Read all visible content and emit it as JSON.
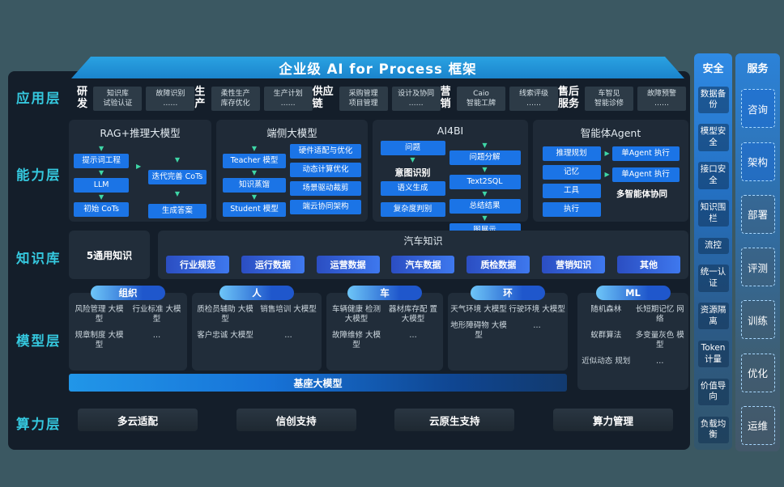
{
  "title": "企业级 AI for Process 框架",
  "layers": {
    "app": {
      "label": "应用层",
      "groups": [
        {
          "label": "研发",
          "items": [
            {
              "l1": "知识库",
              "l2": "试验认证"
            },
            {
              "l1": "故障识别",
              "l2": "……"
            }
          ]
        },
        {
          "label": "生产",
          "items": [
            {
              "l1": "柔性生产",
              "l2": "库存优化"
            },
            {
              "l1": "生产计划",
              "l2": "……"
            }
          ]
        },
        {
          "label": "供应链",
          "items": [
            {
              "l1": "采购管理",
              "l2": "项目管理"
            },
            {
              "l1": "设计及协同",
              "l2": "……"
            }
          ]
        },
        {
          "label": "营销",
          "items": [
            {
              "l1": "Caio",
              "l2": "智能工牌"
            },
            {
              "l1": "线索评级",
              "l2": "……"
            }
          ]
        },
        {
          "label": "售后服务",
          "items": [
            {
              "l1": "车智见",
              "l2": "智能诊修"
            },
            {
              "l1": "故障预警",
              "l2": "……"
            }
          ]
        }
      ]
    },
    "capability": {
      "label": "能力层",
      "rag": {
        "title": "RAG+推理大模型",
        "left": [
          "提示词工程",
          "LLM",
          "初始 CoTs"
        ],
        "right": [
          "迭代完善 CoTs",
          "生成答案"
        ]
      },
      "edge": {
        "title": "端侧大模型",
        "left": [
          "Teacher 模型",
          "知识蒸馏",
          "Student 模型"
        ],
        "right": [
          "硬件适配与优化",
          "动态计算优化",
          "场景驱动裁剪",
          "端云协同架构"
        ]
      },
      "ai4bi": {
        "title": "AI4BI",
        "q": "问题",
        "intent": "意图识别",
        "left2": [
          "语义生成",
          "复杂度判别"
        ],
        "right": [
          "问题分解",
          "Text2SQL",
          "总结结果",
          "图展示"
        ]
      },
      "agent": {
        "title": "智能体Agent",
        "left": [
          "推理规划",
          "记忆",
          "工具",
          "执行"
        ],
        "right": [
          "单Agent 执行",
          "单Agent 执行"
        ],
        "footer": "多智能体协同"
      }
    },
    "knowledge": {
      "label": "知识库",
      "general": "5通用知识",
      "domain_title": "汽车知识",
      "pills": [
        "行业规范",
        "运行数据",
        "运营数据",
        "汽车数据",
        "质检数据",
        "营销知识",
        "其他"
      ]
    },
    "model": {
      "label": "模型层",
      "groups": [
        {
          "header": "组织",
          "cells": [
            "风险管理 大模型",
            "行业标准 大模型",
            "规章制度 大模型",
            "…"
          ]
        },
        {
          "header": "人",
          "cells": [
            "质检员辅助 大模型",
            "销售培训 大模型",
            "客户忠诚 大模型",
            "…"
          ]
        },
        {
          "header": "车",
          "cells": [
            "车辆健康 检测大模型",
            "器材库存配 置大模型",
            "故障维修 大模型",
            "…"
          ]
        },
        {
          "header": "环",
          "cells": [
            "天气环境 大模型",
            "行驶环境 大模型",
            "地形障碍物 大模型",
            "…"
          ]
        },
        {
          "header": "ML",
          "cells": [
            "随机森林",
            "长短期记忆 网络",
            "蚁群算法",
            "多变量灰色 模型",
            "近似动态 规划",
            "…"
          ]
        }
      ],
      "base": "基座大模型"
    },
    "compute": {
      "label": "算力层",
      "items": [
        "多云适配",
        "信创支持",
        "云原生支持",
        "算力管理"
      ]
    }
  },
  "security": {
    "label": "安全",
    "items": [
      "数据备份",
      "模型安全",
      "接口安全",
      "知识围栏",
      "流控",
      "统一认证",
      "资源隔离",
      "Token计量",
      "价值导向",
      "负载均衡"
    ]
  },
  "service": {
    "label": "服务",
    "items": [
      "咨询",
      "架构",
      "部署",
      "评测",
      "训练",
      "优化",
      "运维"
    ]
  },
  "colors": {
    "accent_cyan": "#35c8de",
    "primary_blue": "#1b74e6",
    "panel_dark": "#1f2a37",
    "bg_slate": "#3b5862",
    "arrow_teal": "#3ed6a6"
  }
}
